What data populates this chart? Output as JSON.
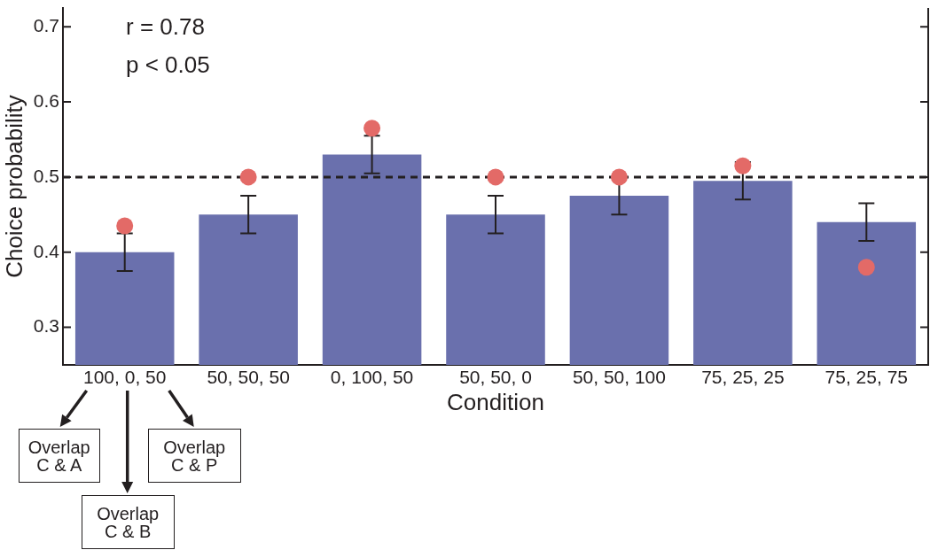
{
  "chart_data": {
    "type": "bar",
    "xlabel": "Condition",
    "ylabel": "Choice probability",
    "categories": [
      "100, 0, 50",
      "50, 50, 50",
      "0, 100, 50",
      "50, 50, 0",
      "50, 50, 100",
      "75, 25, 25",
      "75, 25, 75"
    ],
    "series": [
      {
        "color": "#6a70ad",
        "values": [
          0.4,
          0.45,
          0.53,
          0.45,
          0.475,
          0.495,
          0.44
        ],
        "errors": [
          0.025,
          0.025,
          0.025,
          0.025,
          0.025,
          0.025,
          0.025
        ]
      },
      {
        "type": "scatter",
        "color": "#e36a67",
        "x": [
          "100, 0, 50",
          "50, 50, 50",
          "0, 100, 50",
          "50, 50, 0",
          "50, 50, 100",
          "75, 25, 25",
          "75, 25, 75"
        ],
        "values": [
          0.435,
          0.5,
          0.565,
          0.5,
          0.5,
          0.515,
          0.38
        ]
      }
    ],
    "ylim": [
      0.25,
      0.725
    ],
    "yticks": [
      0.3,
      0.4,
      0.5,
      0.6,
      0.7
    ],
    "ref_lines": [
      {
        "axis": "y",
        "value": 0.5,
        "color": "#231f20",
        "line_style": "dashed"
      }
    ],
    "marker": "circle",
    "annotations": [
      "r = 0.78",
      "p < 0.05",
      "Overlap C & A",
      "Overlap C & B",
      "Overlap C & P"
    ]
  }
}
